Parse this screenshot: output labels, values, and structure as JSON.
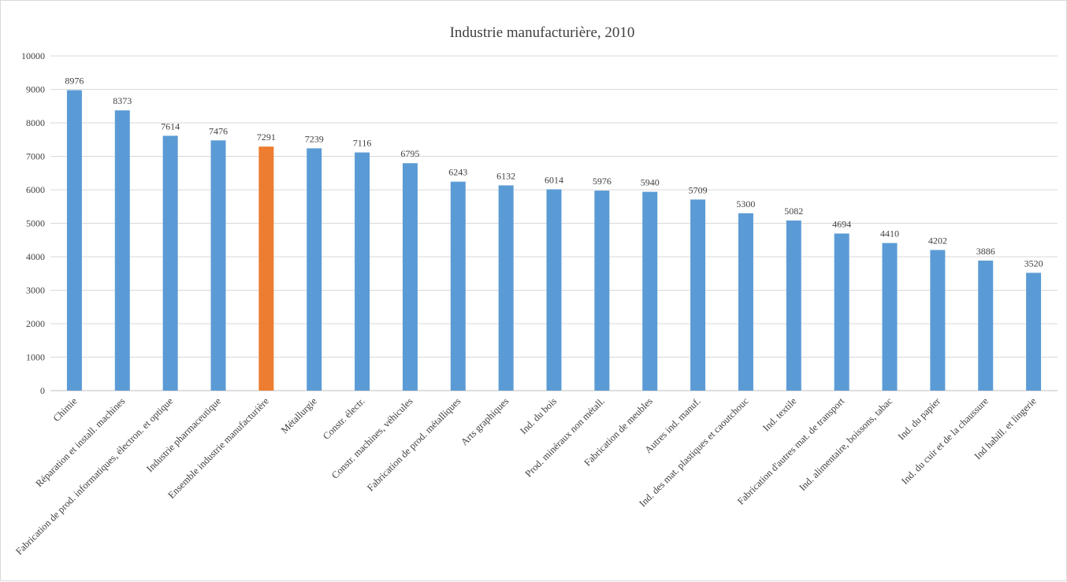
{
  "chart_data": {
    "type": "bar",
    "title": "Industrie manufacturière, 2010",
    "xlabel": "",
    "ylabel": "",
    "ylim": [
      0,
      10000
    ],
    "yticks": [
      0,
      1000,
      2000,
      3000,
      4000,
      5000,
      6000,
      7000,
      8000,
      9000,
      10000
    ],
    "grid": true,
    "legend": "none",
    "categories": [
      "Chimie",
      "Réparation et install. machines",
      "Fabrication de prod. informatiques, électron. et optique",
      "Industrie pharmaceutique",
      "Ensemble industrie manufacturière",
      "Métallurgie",
      "Constr. électr.",
      "Constr. machines, véhicules",
      "Fabrication de prod. métalliques",
      "Arts graphiques",
      "Ind. du bois",
      "Prod. minéraux non métall.",
      "Fabrication de meubles",
      "Autres ind. manuf.",
      "Ind. des mat. plastiques et caoutchouc",
      "Ind. textile",
      "Fabrication d'autres mat. de transport",
      "Ind. alimentaire, boissons, tabac",
      "Ind. du papier",
      "Ind. du cuir et de la chaussure",
      "Ind habill. et lingerie"
    ],
    "values": [
      8976,
      8373,
      7614,
      7476,
      7291,
      7239,
      7116,
      6795,
      6243,
      6132,
      6014,
      5976,
      5940,
      5709,
      5300,
      5082,
      4694,
      4410,
      4202,
      3886,
      3520
    ],
    "highlight_index": 4,
    "colors": {
      "bar": "#5b9bd5",
      "highlight": "#ed7d31",
      "grid": "#d9d9d9",
      "axis": "#bfbfbf",
      "text": "#404040"
    }
  }
}
